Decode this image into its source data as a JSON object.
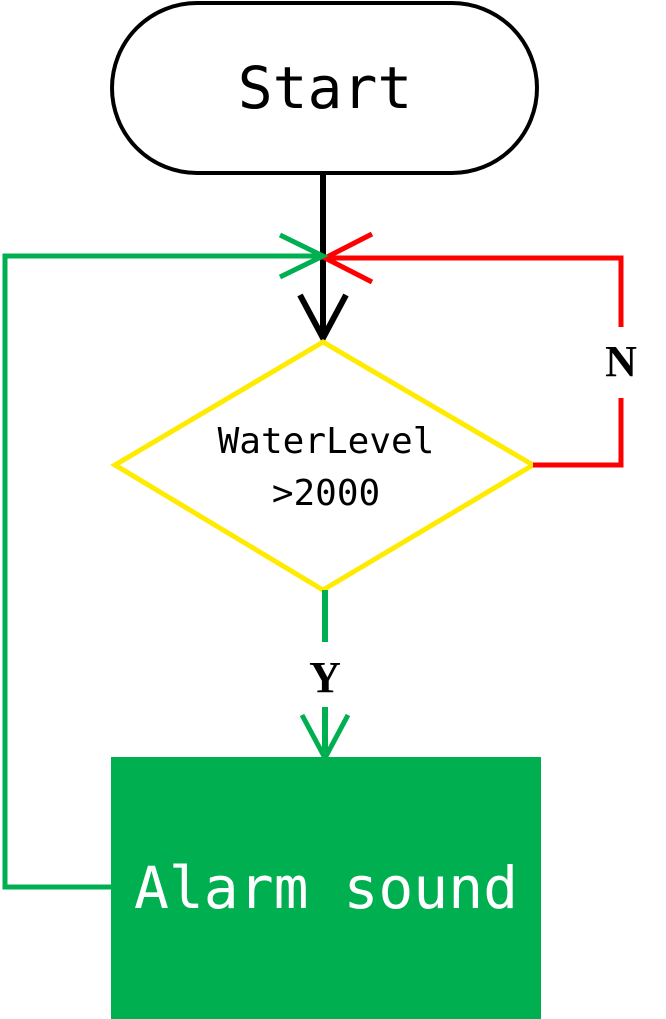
{
  "diagram": {
    "start_label": "Start",
    "decision_line1": "WaterLevel",
    "decision_line2": ">2000",
    "no_label": "N",
    "yes_label": "Y",
    "action_label": "Alarm sound"
  },
  "colors": {
    "start_stroke": "#000000",
    "decision_stroke": "#ffeb00",
    "no_branch": "#ff0000",
    "yes_branch": "#00b050",
    "loop_back": "#00b050",
    "action_fill": "#00b050",
    "action_text": "#ffffff",
    "main_arrow": "#000000"
  }
}
